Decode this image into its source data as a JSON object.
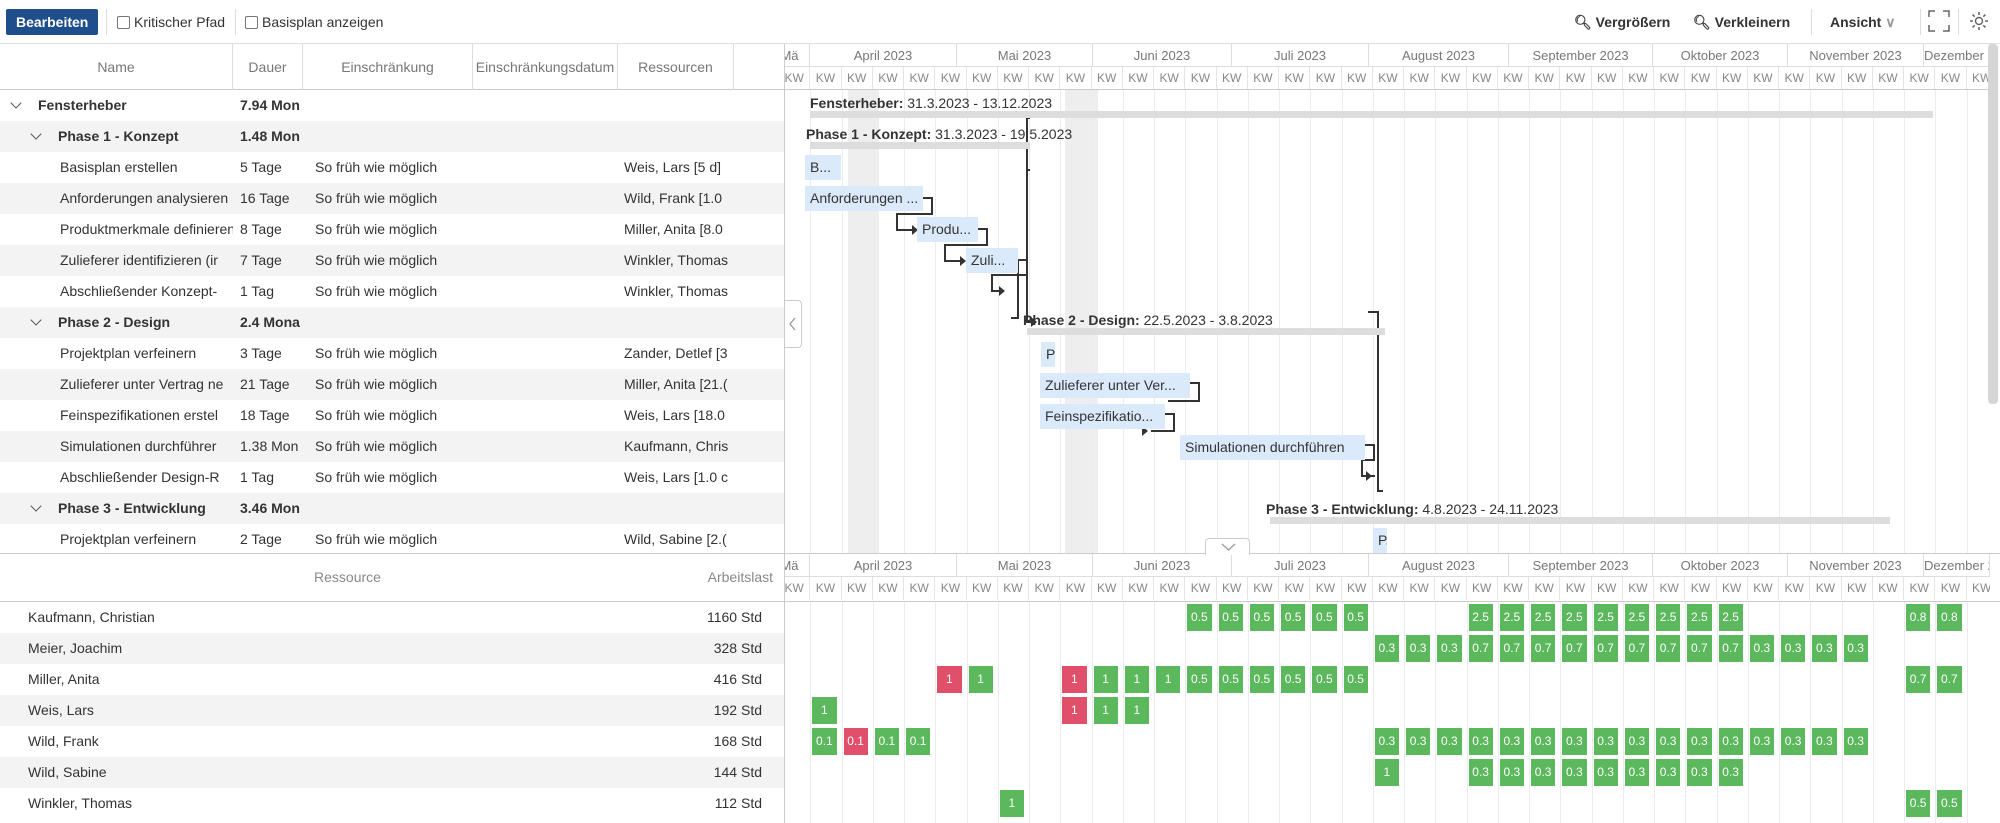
{
  "toolbar": {
    "edit": "Bearbeiten",
    "critical_path": "Kritischer Pfad",
    "baseline": "Basisplan anzeigen",
    "zoom_in": "Vergrößern",
    "zoom_out": "Verkleinern",
    "view": "Ansicht"
  },
  "columns": {
    "name": "Name",
    "duration": "Dauer",
    "constraint": "Einschränkung",
    "constraint_date": "Einschränkungsdatum",
    "resources": "Ressourcen"
  },
  "tasks": [
    {
      "name": "Fensterheber",
      "duration": "7.94 Mon",
      "constraint": "",
      "resources": "",
      "level": 0,
      "summary": true
    },
    {
      "name": "Phase 1 - Konzept",
      "duration": "1.48 Mon",
      "constraint": "",
      "resources": "",
      "level": 1,
      "summary": true
    },
    {
      "name": "Basisplan erstellen",
      "duration": "5 Tage",
      "constraint": "So früh wie möglich",
      "resources": "Weis, Lars [5 d]",
      "level": 2
    },
    {
      "name": "Anforderungen analysieren",
      "duration": "16 Tage",
      "constraint": "So früh wie möglich",
      "resources": "Wild, Frank [1.0",
      "level": 2
    },
    {
      "name": "Produktmerkmale definieren",
      "duration": "8 Tage",
      "constraint": "So früh wie möglich",
      "resources": "Miller, Anita [8.0",
      "level": 2
    },
    {
      "name": "Zulieferer identifizieren (ir",
      "duration": "7 Tage",
      "constraint": "So früh wie möglich",
      "resources": "Winkler, Thomas",
      "level": 2
    },
    {
      "name": "Abschließender Konzept-",
      "duration": "1 Tag",
      "constraint": "So früh wie möglich",
      "resources": "Winkler, Thomas",
      "level": 2
    },
    {
      "name": "Phase 2 - Design",
      "duration": "2.4 Mona",
      "constraint": "",
      "resources": "",
      "level": 1,
      "summary": true
    },
    {
      "name": "Projektplan verfeinern",
      "duration": "3 Tage",
      "constraint": "So früh wie möglich",
      "resources": "Zander, Detlef [3",
      "level": 2
    },
    {
      "name": "Zulieferer unter Vertrag ne",
      "duration": "21 Tage",
      "constraint": "So früh wie möglich",
      "resources": "Miller, Anita [21.(",
      "level": 2
    },
    {
      "name": "Feinspezifikationen erstel",
      "duration": "18 Tage",
      "constraint": "So früh wie möglich",
      "resources": "Weis, Lars [18.0",
      "level": 2
    },
    {
      "name": "Simulationen durchführer",
      "duration": "1.38 Mon",
      "constraint": "So früh wie möglich",
      "resources": "Kaufmann, Chris",
      "level": 2
    },
    {
      "name": "Abschließender Design-R",
      "duration": "1 Tag",
      "constraint": "So früh wie möglich",
      "resources": "Weis, Lars [1.0 c",
      "level": 2
    },
    {
      "name": "Phase 3 - Entwicklung",
      "duration": "3.46 Mon",
      "constraint": "",
      "resources": "",
      "level": 1,
      "summary": true
    },
    {
      "name": "Projektplan verfeinern",
      "duration": "2 Tage",
      "constraint": "So früh wie möglich",
      "resources": "Wild, Sabine [2.(",
      "level": 2
    }
  ],
  "timeline": {
    "months": [
      "Mä",
      "April 2023",
      "Mai 2023",
      "Juni 2023",
      "Juli 2023",
      "August 2023",
      "September 2023",
      "Oktober 2023",
      "November 2023",
      "Dezember 20"
    ],
    "week_label": "KW"
  },
  "gantt": {
    "summaries": [
      {
        "name": "Fensterheber:",
        "dates": "31.3.2023 - 13.12.2023"
      },
      {
        "name": "Phase 1 - Konzept:",
        "dates": "31.3.2023 - 19.5.2023"
      },
      {
        "name": "Phase 2 - Design:",
        "dates": "22.5.2023 - 3.8.2023"
      },
      {
        "name": "Phase 3 - Entwicklung:",
        "dates": "4.8.2023 - 24.11.2023"
      }
    ],
    "bars": [
      "B...",
      "Anforderungen ...",
      "Produ...",
      "Zuli...",
      "P",
      "Zulieferer unter Ver...",
      "Feinspezifikatio...",
      "Simulationen durchführen",
      "P."
    ]
  },
  "resource_panel": {
    "col_resource": "Ressource",
    "col_workload": "Arbeitslast"
  },
  "resources": [
    {
      "name": "Kaufmann, Christian",
      "workload": "1160 Std"
    },
    {
      "name": "Meier, Joachim",
      "workload": "328 Std"
    },
    {
      "name": "Miller, Anita",
      "workload": "416 Std"
    },
    {
      "name": "Weis, Lars",
      "workload": "192 Std"
    },
    {
      "name": "Wild, Frank",
      "workload": "168 Std"
    },
    {
      "name": "Wild, Sabine",
      "workload": "144 Std"
    },
    {
      "name": "Winkler, Thomas",
      "workload": "112 Std"
    }
  ],
  "load_cells": [
    {
      "row": 0,
      "col": 13,
      "v": "0.5"
    },
    {
      "row": 0,
      "col": 14,
      "v": "0.5"
    },
    {
      "row": 0,
      "col": 15,
      "v": "0.5"
    },
    {
      "row": 0,
      "col": 16,
      "v": "0.5"
    },
    {
      "row": 0,
      "col": 17,
      "v": "0.5"
    },
    {
      "row": 0,
      "col": 18,
      "v": "0.5"
    },
    {
      "row": 0,
      "col": 22,
      "v": "2.5"
    },
    {
      "row": 0,
      "col": 23,
      "v": "2.5"
    },
    {
      "row": 0,
      "col": 24,
      "v": "2.5"
    },
    {
      "row": 0,
      "col": 25,
      "v": "2.5"
    },
    {
      "row": 0,
      "col": 26,
      "v": "2.5"
    },
    {
      "row": 0,
      "col": 27,
      "v": "2.5"
    },
    {
      "row": 0,
      "col": 28,
      "v": "2.5"
    },
    {
      "row": 0,
      "col": 29,
      "v": "2.5"
    },
    {
      "row": 0,
      "col": 30,
      "v": "2.5"
    },
    {
      "row": 0,
      "col": 36,
      "v": "0.8"
    },
    {
      "row": 0,
      "col": 37,
      "v": "0.8"
    },
    {
      "row": 1,
      "col": 19,
      "v": "0.3"
    },
    {
      "row": 1,
      "col": 20,
      "v": "0.3"
    },
    {
      "row": 1,
      "col": 21,
      "v": "0.3"
    },
    {
      "row": 1,
      "col": 22,
      "v": "0.7"
    },
    {
      "row": 1,
      "col": 23,
      "v": "0.7"
    },
    {
      "row": 1,
      "col": 24,
      "v": "0.7"
    },
    {
      "row": 1,
      "col": 25,
      "v": "0.7"
    },
    {
      "row": 1,
      "col": 26,
      "v": "0.7"
    },
    {
      "row": 1,
      "col": 27,
      "v": "0.7"
    },
    {
      "row": 1,
      "col": 28,
      "v": "0.7"
    },
    {
      "row": 1,
      "col": 29,
      "v": "0.7"
    },
    {
      "row": 1,
      "col": 30,
      "v": "0.7"
    },
    {
      "row": 1,
      "col": 31,
      "v": "0.3"
    },
    {
      "row": 1,
      "col": 32,
      "v": "0.3"
    },
    {
      "row": 1,
      "col": 33,
      "v": "0.3"
    },
    {
      "row": 1,
      "col": 34,
      "v": "0.3"
    },
    {
      "row": 2,
      "col": 5,
      "v": "1",
      "red": true
    },
    {
      "row": 2,
      "col": 6,
      "v": "1"
    },
    {
      "row": 2,
      "col": 9,
      "v": "1",
      "red": true
    },
    {
      "row": 2,
      "col": 10,
      "v": "1"
    },
    {
      "row": 2,
      "col": 11,
      "v": "1"
    },
    {
      "row": 2,
      "col": 12,
      "v": "1"
    },
    {
      "row": 2,
      "col": 13,
      "v": "0.5"
    },
    {
      "row": 2,
      "col": 14,
      "v": "0.5"
    },
    {
      "row": 2,
      "col": 15,
      "v": "0.5"
    },
    {
      "row": 2,
      "col": 16,
      "v": "0.5"
    },
    {
      "row": 2,
      "col": 17,
      "v": "0.5"
    },
    {
      "row": 2,
      "col": 18,
      "v": "0.5"
    },
    {
      "row": 2,
      "col": 36,
      "v": "0.7"
    },
    {
      "row": 2,
      "col": 37,
      "v": "0.7"
    },
    {
      "row": 3,
      "col": 1,
      "v": "1"
    },
    {
      "row": 3,
      "col": 9,
      "v": "1",
      "red": true
    },
    {
      "row": 3,
      "col": 10,
      "v": "1"
    },
    {
      "row": 3,
      "col": 11,
      "v": "1"
    },
    {
      "row": 4,
      "col": 1,
      "v": "0.1"
    },
    {
      "row": 4,
      "col": 2,
      "v": "0.1",
      "red": true
    },
    {
      "row": 4,
      "col": 3,
      "v": "0.1"
    },
    {
      "row": 4,
      "col": 4,
      "v": "0.1"
    },
    {
      "row": 4,
      "col": 19,
      "v": "0.3"
    },
    {
      "row": 4,
      "col": 20,
      "v": "0.3"
    },
    {
      "row": 4,
      "col": 21,
      "v": "0.3"
    },
    {
      "row": 4,
      "col": 22,
      "v": "0.3"
    },
    {
      "row": 4,
      "col": 23,
      "v": "0.3"
    },
    {
      "row": 4,
      "col": 24,
      "v": "0.3"
    },
    {
      "row": 4,
      "col": 25,
      "v": "0.3"
    },
    {
      "row": 4,
      "col": 26,
      "v": "0.3"
    },
    {
      "row": 4,
      "col": 27,
      "v": "0.3"
    },
    {
      "row": 4,
      "col": 28,
      "v": "0.3"
    },
    {
      "row": 4,
      "col": 29,
      "v": "0.3"
    },
    {
      "row": 4,
      "col": 30,
      "v": "0.3"
    },
    {
      "row": 4,
      "col": 31,
      "v": "0.3"
    },
    {
      "row": 4,
      "col": 32,
      "v": "0.3"
    },
    {
      "row": 4,
      "col": 33,
      "v": "0.3"
    },
    {
      "row": 4,
      "col": 34,
      "v": "0.3"
    },
    {
      "row": 5,
      "col": 19,
      "v": "1"
    },
    {
      "row": 5,
      "col": 22,
      "v": "0.3"
    },
    {
      "row": 5,
      "col": 23,
      "v": "0.3"
    },
    {
      "row": 5,
      "col": 24,
      "v": "0.3"
    },
    {
      "row": 5,
      "col": 25,
      "v": "0.3"
    },
    {
      "row": 5,
      "col": 26,
      "v": "0.3"
    },
    {
      "row": 5,
      "col": 27,
      "v": "0.3"
    },
    {
      "row": 5,
      "col": 28,
      "v": "0.3"
    },
    {
      "row": 5,
      "col": 29,
      "v": "0.3"
    },
    {
      "row": 5,
      "col": 30,
      "v": "0.3"
    },
    {
      "row": 6,
      "col": 7,
      "v": "1"
    },
    {
      "row": 6,
      "col": 36,
      "v": "0.5"
    },
    {
      "row": 6,
      "col": 37,
      "v": "0.5"
    }
  ]
}
